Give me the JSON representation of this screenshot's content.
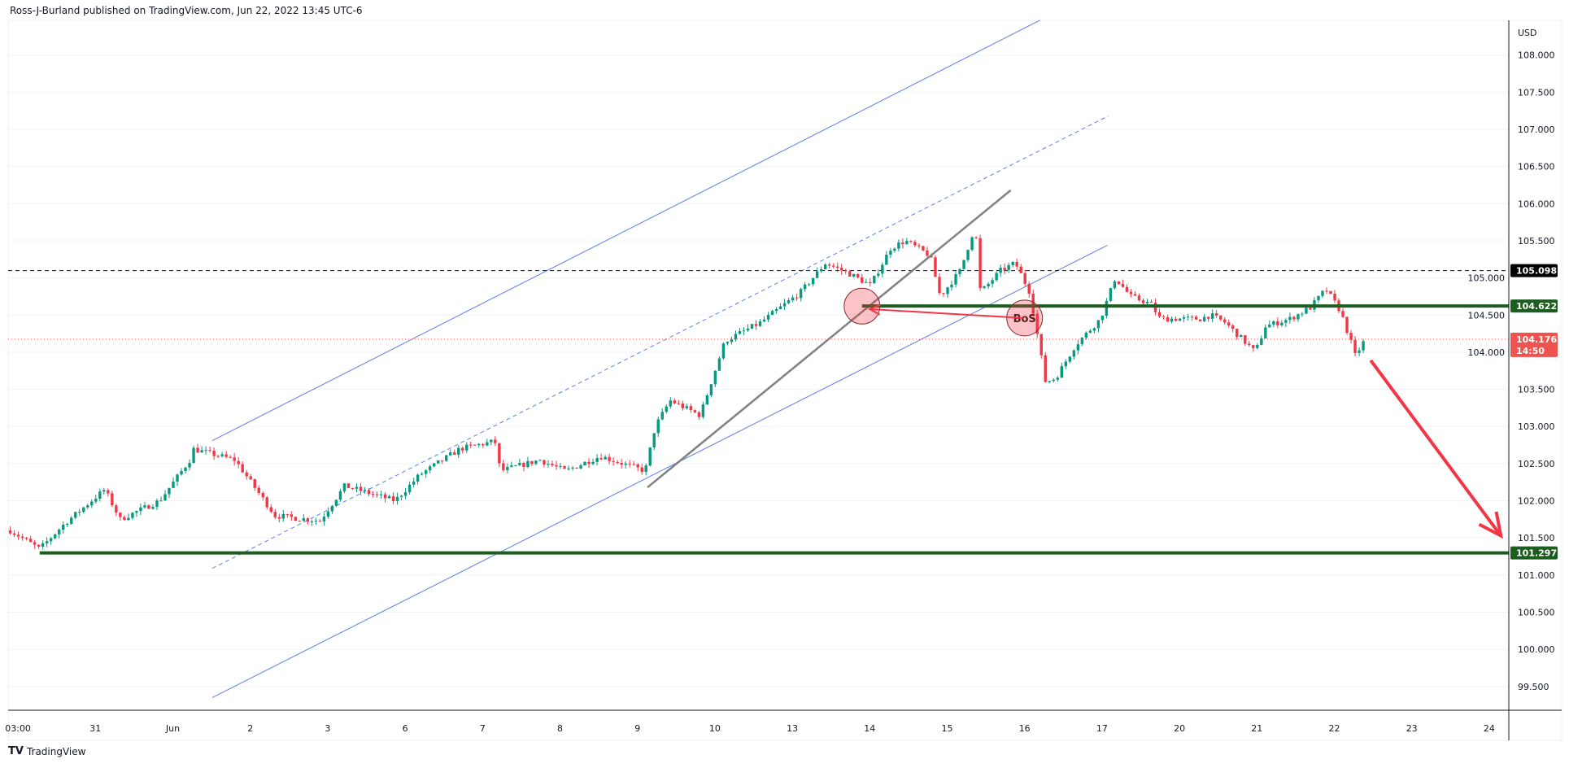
{
  "header": {
    "attribution": "Ross-J-Burland published on TradingView.com, Jun 22, 2022 13:45 UTC-6"
  },
  "footer": {
    "logo_text": "TV",
    "brand": "TradingView"
  },
  "colors": {
    "up": "#089981",
    "down": "#f23645",
    "channel": "#5b7fe8",
    "trendline": "#808080",
    "support": "#1b5e20",
    "current": "#ef5350",
    "arrow": "#f23645"
  },
  "chart_data": {
    "type": "candlestick",
    "currency_label": "USD",
    "y_range": [
      99.1,
      108.45
    ],
    "y_ticks": [
      "108.000",
      "107.500",
      "107.000",
      "106.500",
      "106.000",
      "105.500",
      "105.000",
      "104.500",
      "104.000",
      "103.500",
      "103.000",
      "102.500",
      "102.000",
      "101.500",
      "101.000",
      "100.500",
      "100.000",
      "99.500"
    ],
    "x_ticks": [
      "03:00",
      "31",
      "Jun",
      "2",
      "3",
      "6",
      "7",
      "8",
      "9",
      "10",
      "13",
      "14",
      "15",
      "16",
      "17",
      "20",
      "21",
      "22",
      "23",
      "24"
    ],
    "price_path_approx": [
      [
        -0.1,
        101.6
      ],
      [
        0.28,
        101.35
      ],
      [
        0.61,
        101.7
      ],
      [
        1.12,
        102.15
      ],
      [
        1.32,
        101.75
      ],
      [
        1.83,
        102.0
      ],
      [
        2.22,
        102.55
      ],
      [
        2.25,
        102.7
      ],
      [
        2.8,
        102.55
      ],
      [
        3.32,
        101.8
      ],
      [
        3.9,
        101.73
      ],
      [
        4.22,
        102.2
      ],
      [
        4.87,
        102.0
      ],
      [
        5.19,
        102.35
      ],
      [
        5.71,
        102.7
      ],
      [
        6.16,
        102.8
      ],
      [
        6.23,
        102.4
      ],
      [
        6.74,
        102.55
      ],
      [
        7.07,
        102.4
      ],
      [
        7.52,
        102.6
      ],
      [
        8.1,
        102.4
      ],
      [
        8.23,
        103.0
      ],
      [
        8.42,
        103.35
      ],
      [
        8.81,
        103.15
      ],
      [
        9.13,
        104.15
      ],
      [
        9.59,
        104.4
      ],
      [
        10.1,
        104.8
      ],
      [
        10.43,
        105.2
      ],
      [
        10.75,
        105.05
      ],
      [
        11.01,
        104.9
      ],
      [
        11.27,
        105.4
      ],
      [
        11.46,
        105.5
      ],
      [
        11.78,
        105.3
      ],
      [
        11.91,
        104.75
      ],
      [
        12.17,
        105.1
      ],
      [
        12.36,
        105.7
      ],
      [
        12.43,
        104.8
      ],
      [
        12.69,
        105.1
      ],
      [
        12.88,
        105.2
      ],
      [
        13.07,
        104.8
      ],
      [
        13.27,
        103.6
      ],
      [
        13.4,
        103.65
      ],
      [
        13.66,
        104.1
      ],
      [
        13.98,
        104.45
      ],
      [
        14.17,
        105.0
      ],
      [
        14.37,
        104.75
      ],
      [
        14.63,
        104.65
      ],
      [
        14.75,
        104.45
      ],
      [
        15.27,
        104.45
      ],
      [
        15.4,
        104.5
      ],
      [
        15.59,
        104.4
      ],
      [
        15.98,
        104.0
      ],
      [
        16.11,
        104.35
      ],
      [
        16.43,
        104.45
      ],
      [
        16.69,
        104.6
      ],
      [
        16.89,
        104.85
      ],
      [
        17.08,
        104.55
      ],
      [
        17.21,
        104.15
      ],
      [
        17.27,
        103.95
      ],
      [
        17.4,
        104.176
      ]
    ],
    "price_labels": {
      "recent_high": {
        "value": "105.098"
      },
      "resistance": {
        "value": "104.622"
      },
      "last": {
        "value": "104.176",
        "countdown": "14:50"
      },
      "support": {
        "value": "101.297"
      }
    },
    "annotations": {
      "bos_label": "BoS",
      "upper_channel": [
        [
          2.51,
          102.81
        ],
        [
          13.2,
          108.47
        ]
      ],
      "mid_channel_dashed": [
        [
          2.51,
          101.09
        ],
        [
          14.08,
          107.18
        ]
      ],
      "lower_channel": [
        [
          2.51,
          99.35
        ],
        [
          14.07,
          105.44
        ]
      ],
      "trendline": [
        [
          8.13,
          102.18
        ],
        [
          12.82,
          106.18
        ]
      ],
      "support_line_start": 0.28,
      "resistance_line_start": 10.9,
      "circles": [
        [
          10.9,
          104.62
        ],
        [
          13.0,
          104.46
        ]
      ],
      "bos_arrow": [
        [
          12.98,
          104.46
        ],
        [
          11.0,
          104.58
        ]
      ],
      "projection_arrow": [
        [
          17.47,
          103.89
        ],
        [
          19.15,
          101.53
        ]
      ]
    }
  }
}
